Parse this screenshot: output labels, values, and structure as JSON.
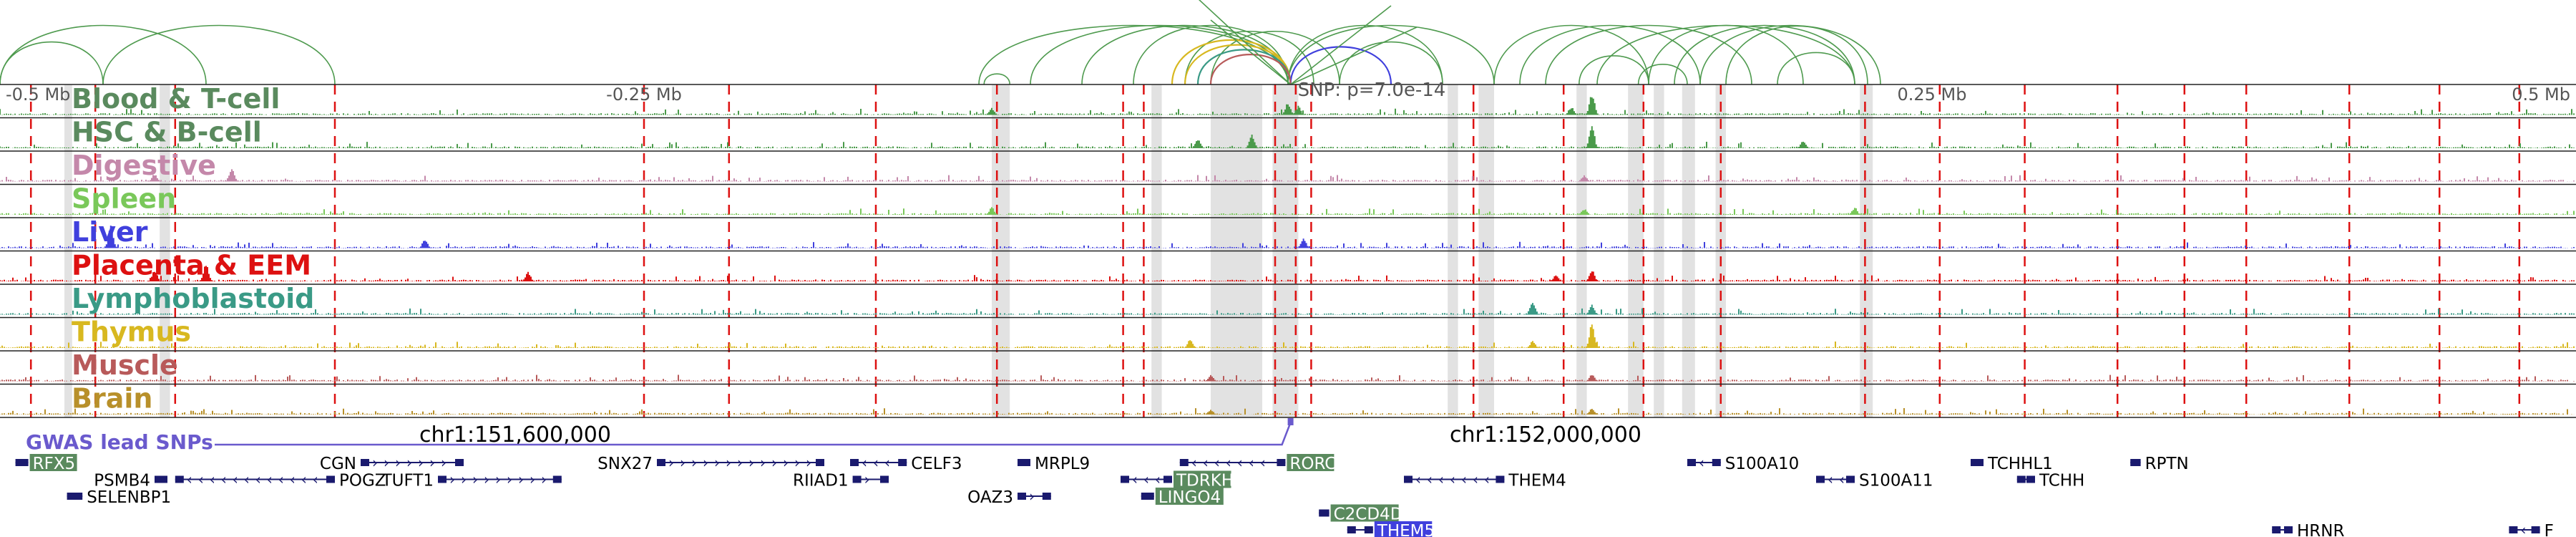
{
  "axis": {
    "ticks": [
      {
        "label": "-0.5 Mb",
        "pos": -0.5
      },
      {
        "label": "-0.25 Mb",
        "pos": -0.25
      },
      {
        "label": "0.25 Mb",
        "pos": 0.25
      },
      {
        "label": "0.5 Mb",
        "pos": 0.5
      }
    ],
    "range": [
      -0.5,
      0.5
    ]
  },
  "snp_label": "SNP: p=7.0e-14",
  "tracks": [
    {
      "name": "Blood & T-cell",
      "color": "#5a8a5e",
      "signal": "#4a9a4a"
    },
    {
      "name": "HSC & B-cell",
      "color": "#5a8a5e",
      "signal": "#4a9a4a"
    },
    {
      "name": "Digestive",
      "color": "#c488aa",
      "signal": "#c488aa"
    },
    {
      "name": "Spleen",
      "color": "#7ac85a",
      "signal": "#7ac85a"
    },
    {
      "name": "Liver",
      "color": "#4040dd",
      "signal": "#4040dd"
    },
    {
      "name": "Placenta & EEM",
      "color": "#dd1111",
      "signal": "#dd1111"
    },
    {
      "name": "Lymphoblastoid",
      "color": "#3a9a86",
      "signal": "#3a9a86"
    },
    {
      "name": "Thymus",
      "color": "#d8b820",
      "signal": "#d8b820"
    },
    {
      "name": "Muscle",
      "color": "#b85a5a",
      "signal": "#b85a5a"
    },
    {
      "name": "Brain",
      "color": "#b8902a",
      "signal": "#b8902a"
    }
  ],
  "gwas_label": "GWAS lead SNPs",
  "coords": [
    {
      "label": "chr1:151,600,000",
      "pos": -0.3
    },
    {
      "label": "chr1:152,000,000",
      "pos": 0.1
    }
  ],
  "genes": [
    {
      "name": "RFX5",
      "start": -0.494,
      "end": -0.489,
      "row": 0,
      "dir": "-",
      "highlight": "#5a8a5e"
    },
    {
      "name": "PSMB4",
      "start": -0.44,
      "end": -0.435,
      "row": 1,
      "dir": "+",
      "label_side": "left"
    },
    {
      "name": "POGZ",
      "start": -0.432,
      "end": -0.37,
      "row": 1,
      "dir": "-"
    },
    {
      "name": "SELENBP1",
      "start": -0.474,
      "end": -0.468,
      "row": 2,
      "dir": "-"
    },
    {
      "name": "CGN",
      "start": -0.36,
      "end": -0.32,
      "row": 0,
      "dir": "+",
      "label_side": "left"
    },
    {
      "name": "TUFT1",
      "start": -0.33,
      "end": -0.282,
      "row": 1,
      "dir": "+",
      "label_side": "left"
    },
    {
      "name": "SNX27",
      "start": -0.245,
      "end": -0.18,
      "row": 0,
      "dir": "+",
      "label_side": "left"
    },
    {
      "name": "CELF3",
      "start": -0.17,
      "end": -0.148,
      "row": 0,
      "dir": "-"
    },
    {
      "name": "RIIAD1",
      "start": -0.169,
      "end": -0.155,
      "row": 1,
      "dir": "+",
      "label_side": "left"
    },
    {
      "name": "MRPL9",
      "start": -0.105,
      "end": -0.1,
      "row": 0,
      "dir": "-"
    },
    {
      "name": "OAZ3",
      "start": -0.105,
      "end": -0.092,
      "row": 2,
      "dir": "+",
      "label_side": "left"
    },
    {
      "name": "RORC",
      "start": -0.042,
      "end": -0.001,
      "row": 0,
      "dir": "-",
      "highlight": "#5a8a5e"
    },
    {
      "name": "TDRKH",
      "start": -0.065,
      "end": -0.045,
      "row": 1,
      "dir": "-",
      "highlight": "#5a8a5e"
    },
    {
      "name": "LINGO4",
      "start": -0.057,
      "end": -0.052,
      "row": 2,
      "dir": "-",
      "highlight": "#5a8a5e"
    },
    {
      "name": "C2CD4D",
      "start": 0.012,
      "end": 0.016,
      "row": 3,
      "dir": "+",
      "highlight": "#5a8a5e"
    },
    {
      "name": "THEM5",
      "start": 0.023,
      "end": 0.033,
      "row": 4,
      "dir": "-",
      "highlight": "#4040dd"
    },
    {
      "name": "THEM4",
      "start": 0.045,
      "end": 0.084,
      "row": 1,
      "dir": "-"
    },
    {
      "name": "S100A10",
      "start": 0.155,
      "end": 0.168,
      "row": 0,
      "dir": "-"
    },
    {
      "name": "S100A11",
      "start": 0.205,
      "end": 0.22,
      "row": 1,
      "dir": "-"
    },
    {
      "name": "TCHHL1",
      "start": 0.265,
      "end": 0.27,
      "row": 0,
      "dir": "-"
    },
    {
      "name": "TCHH",
      "start": 0.283,
      "end": 0.29,
      "row": 1,
      "dir": "-"
    },
    {
      "name": "RPTN",
      "start": 0.327,
      "end": 0.331,
      "row": 0,
      "dir": "-"
    },
    {
      "name": "HRNR",
      "start": 0.382,
      "end": 0.39,
      "row": 4,
      "dir": "-"
    },
    {
      "name": "F",
      "start": 0.474,
      "end": 0.486,
      "row": 4,
      "dir": "-"
    }
  ],
  "snp_pos": 0.001,
  "snp_pvalue": "7.0e-14"
}
